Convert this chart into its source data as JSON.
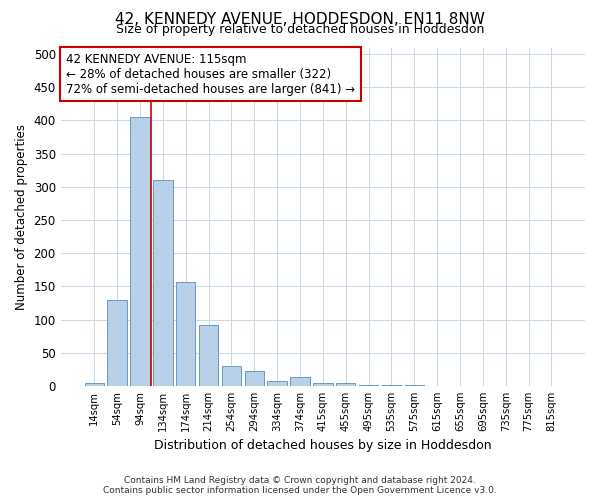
{
  "title": "42, KENNEDY AVENUE, HODDESDON, EN11 8NW",
  "subtitle": "Size of property relative to detached houses in Hoddesdon",
  "xlabel": "Distribution of detached houses by size in Hoddesdon",
  "ylabel": "Number of detached properties",
  "footer_line1": "Contains HM Land Registry data © Crown copyright and database right 2024.",
  "footer_line2": "Contains public sector information licensed under the Open Government Licence v3.0.",
  "categories": [
    "14sqm",
    "54sqm",
    "94sqm",
    "134sqm",
    "174sqm",
    "214sqm",
    "254sqm",
    "294sqm",
    "334sqm",
    "374sqm",
    "415sqm",
    "455sqm",
    "495sqm",
    "535sqm",
    "575sqm",
    "615sqm",
    "655sqm",
    "695sqm",
    "735sqm",
    "775sqm",
    "815sqm"
  ],
  "values": [
    5,
    130,
    405,
    310,
    157,
    92,
    30,
    22,
    8,
    14,
    5,
    5,
    2,
    1,
    1,
    0,
    0,
    0,
    0,
    0,
    0
  ],
  "bar_color": "#b8d0e8",
  "bar_edge_color": "#6699cc",
  "bar_edge_width": 0.7,
  "vline_color": "#cc0000",
  "vline_x_index": 2.5,
  "annotation_text": "42 KENNEDY AVENUE: 115sqm\n← 28% of detached houses are smaller (322)\n72% of semi-detached houses are larger (841) →",
  "annotation_box_facecolor": "#ffffff",
  "annotation_box_edgecolor": "#cc0000",
  "ylim": [
    0,
    510
  ],
  "yticks": [
    0,
    50,
    100,
    150,
    200,
    250,
    300,
    350,
    400,
    450,
    500
  ],
  "background_color": "#ffffff",
  "grid_color": "#c8d8e8"
}
